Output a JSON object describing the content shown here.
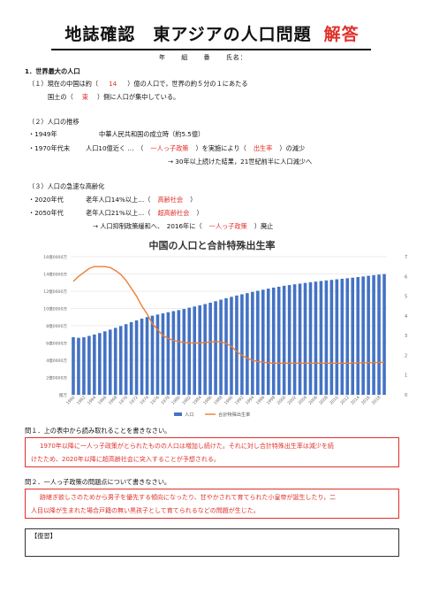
{
  "header": {
    "title": "地誌確認　東アジアの人口問題",
    "answer_label": "解答",
    "meta_fields": [
      "年",
      "組",
      "番",
      "氏名："
    ]
  },
  "section1": {
    "heading": "1．世界最大の人口",
    "line1_pre": "（１）現在の中国は約（",
    "line1_ans": "14",
    "line1_post": "）億の人口で，世界の約５分の１にあたる",
    "line2_pre": "国土の（",
    "line2_ans": "東",
    "line2_post": "）側に人口が集中している。"
  },
  "section2": {
    "heading": "（２）人口の推移",
    "row1_label": "・1949年",
    "row1_text": "中華人民共和国の成立時（約5.5億）",
    "row2_label": "・1970年代末",
    "row2_pre": "人口10億近く …　（",
    "row2_ans1": "一人っ子政策",
    "row2_mid": "）を実施により（",
    "row2_ans2": "出生率",
    "row2_post": "）の減少",
    "row3_text": "→ 30年以上続けた結果，21世紀前半に人口減少へ"
  },
  "section3": {
    "heading": "（３）人口の急速な高齢化",
    "row1_label": "・2020年代",
    "row1_pre": "老年人口14%以上…（",
    "row1_ans": "高齢社会",
    "row1_post": "）",
    "row2_label": "・2050年代",
    "row2_pre": "老年人口21%以上…（",
    "row2_ans": "超高齢社会",
    "row2_post": "）",
    "row3_pre": "→ 人口抑制政策緩和へ、　2016年に（",
    "row3_ans": "一人っ子政策",
    "row3_post": "）廃止"
  },
  "chart_data": {
    "type": "bar",
    "title": "中国の人口と合計特殊出生率",
    "y_tick_labels": [
      "億万",
      "2億0000万",
      "4億0000万",
      "6億0000万",
      "8億0000万",
      "10億0000万",
      "12億0000万",
      "14億0000万",
      "16億0000万"
    ],
    "y_ticks": [
      0,
      2,
      4,
      6,
      8,
      10,
      12,
      14,
      16
    ],
    "ylim": [
      0,
      16
    ],
    "y2_ticks": [
      0,
      1,
      2,
      3,
      4,
      5,
      6,
      7
    ],
    "y2lim": [
      0,
      7
    ],
    "x_tick_labels": [
      "1960",
      "1962",
      "1964",
      "1966",
      "1968",
      "1970",
      "1972",
      "1974",
      "1976",
      "1978",
      "1980",
      "1982",
      "1984",
      "1986",
      "1988",
      "1990",
      "1992",
      "1994",
      "1996",
      "1998",
      "2000",
      "2002",
      "2004",
      "2006",
      "2008",
      "2010",
      "2012",
      "2014",
      "2016",
      "2018"
    ],
    "x": [
      1960,
      1961,
      1962,
      1963,
      1964,
      1965,
      1966,
      1967,
      1968,
      1969,
      1970,
      1971,
      1972,
      1973,
      1974,
      1975,
      1976,
      1977,
      1978,
      1979,
      1980,
      1981,
      1982,
      1983,
      1984,
      1985,
      1986,
      1987,
      1988,
      1989,
      1990,
      1991,
      1992,
      1993,
      1994,
      1995,
      1996,
      1997,
      1998,
      1999,
      2000,
      2001,
      2002,
      2003,
      2004,
      2005,
      2006,
      2007,
      2008,
      2009,
      2010,
      2011,
      2012,
      2013,
      2014,
      2015,
      2016,
      2017,
      2018,
      2019
    ],
    "series": [
      {
        "name": "人口",
        "axis": "left",
        "kind": "bar",
        "color": "#4472c4",
        "values": [
          6.67,
          6.6,
          6.66,
          6.82,
          6.98,
          7.15,
          7.35,
          7.55,
          7.75,
          7.96,
          8.18,
          8.41,
          8.62,
          8.82,
          9.0,
          9.16,
          9.3,
          9.43,
          9.56,
          9.69,
          9.81,
          9.94,
          10.09,
          10.23,
          10.36,
          10.51,
          10.67,
          10.84,
          11.02,
          11.19,
          11.35,
          11.5,
          11.64,
          11.78,
          11.92,
          12.05,
          12.17,
          12.3,
          12.42,
          12.52,
          12.63,
          12.71,
          12.8,
          12.88,
          12.96,
          13.04,
          13.11,
          13.18,
          13.25,
          13.31,
          13.38,
          13.44,
          13.5,
          13.57,
          13.64,
          13.71,
          13.79,
          13.86,
          13.93,
          13.98
        ]
      },
      {
        "name": "合計特殊出生率",
        "axis": "right",
        "kind": "line",
        "color": "#ed7d31",
        "values": [
          5.75,
          6.0,
          6.2,
          6.4,
          6.5,
          6.5,
          6.5,
          6.45,
          6.3,
          6.1,
          5.8,
          5.4,
          5.0,
          4.5,
          4.1,
          3.6,
          3.3,
          3.0,
          2.85,
          2.75,
          2.7,
          2.65,
          2.63,
          2.62,
          2.62,
          2.65,
          2.68,
          2.7,
          2.68,
          2.6,
          2.45,
          2.2,
          2.0,
          1.85,
          1.75,
          1.68,
          1.65,
          1.62,
          1.6,
          1.6,
          1.6,
          1.6,
          1.6,
          1.6,
          1.6,
          1.6,
          1.6,
          1.6,
          1.6,
          1.6,
          1.6,
          1.6,
          1.6,
          1.6,
          1.62,
          1.62,
          1.63,
          1.63,
          1.64,
          1.65
        ]
      }
    ],
    "legend_position": "bottom",
    "grid": true
  },
  "q1": {
    "question": "問１．上の表中から読み取れることを書きなさい。",
    "answer_line1": "1970年以降に一人っ子政策がとられたものの人口は増加し続けた。それに対し合計特殊出生率は減少を続",
    "answer_line2": "けたため、2020年以降に超高齢社会に突入することが予想される。"
  },
  "q2": {
    "question": "問２．一人っ子政策の問題点について書きなさい。",
    "answer_line1": "跡継ぎ欲しさのためから男子を優先する傾向になったり、甘やかされて育てられた小皇帝が誕生したり，二",
    "answer_line2": "人目以降が生まれた場合戸籍の無い黒孩子として育てられるなどの問題が生じた。"
  },
  "review": {
    "label": "【復習】"
  }
}
